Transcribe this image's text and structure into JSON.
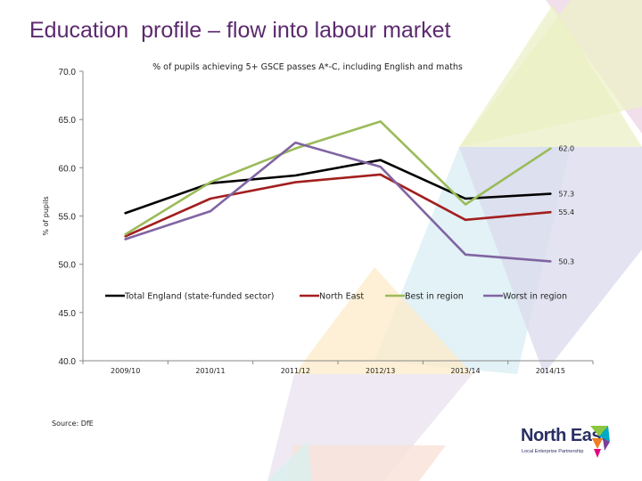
{
  "slide": {
    "title": "Education  profile – flow into labour market",
    "source": "Source: DfE"
  },
  "logo": {
    "name": "North East",
    "tagline": "Local Enterprise Partnership"
  },
  "colors": {
    "title": "#5b2a6e",
    "total_england": "#000000",
    "north_east": "#a31f1f",
    "best_in_region": "#9bbb59",
    "worst_in_region": "#8064a2"
  },
  "chart_data": {
    "type": "line",
    "title": "% of pupils achieving 5+ GSCE passes A*-C, including English and maths",
    "xlabel": "",
    "ylabel": "% of pupils",
    "categories": [
      "2009/10",
      "2010/11",
      "2011/12",
      "2012/13",
      "2013/14",
      "2014/15"
    ],
    "ylim": [
      40.0,
      70.0
    ],
    "yticks": [
      "40.0",
      "45.0",
      "50.0",
      "55.0",
      "60.0",
      "65.0",
      "70.0"
    ],
    "grid": false,
    "legend_position": "inside-middle",
    "series": [
      {
        "name": "Total England (state-funded sector)",
        "color": "#000000",
        "values": [
          55.3,
          58.4,
          59.2,
          60.8,
          56.8,
          57.3
        ]
      },
      {
        "name": "North East",
        "color": "#a31f1f",
        "values": [
          52.9,
          56.8,
          58.5,
          59.3,
          54.6,
          55.4
        ]
      },
      {
        "name": "Best in region",
        "color": "#9bbb59",
        "values": [
          53.1,
          58.5,
          62.0,
          64.8,
          56.2,
          62.0
        ]
      },
      {
        "name": "Worst in region",
        "color": "#8064a2",
        "values": [
          52.6,
          55.5,
          62.6,
          60.1,
          51.0,
          50.3
        ]
      }
    ],
    "data_labels": [
      "62.0",
      "57.3",
      "55.4",
      "50.3"
    ]
  }
}
